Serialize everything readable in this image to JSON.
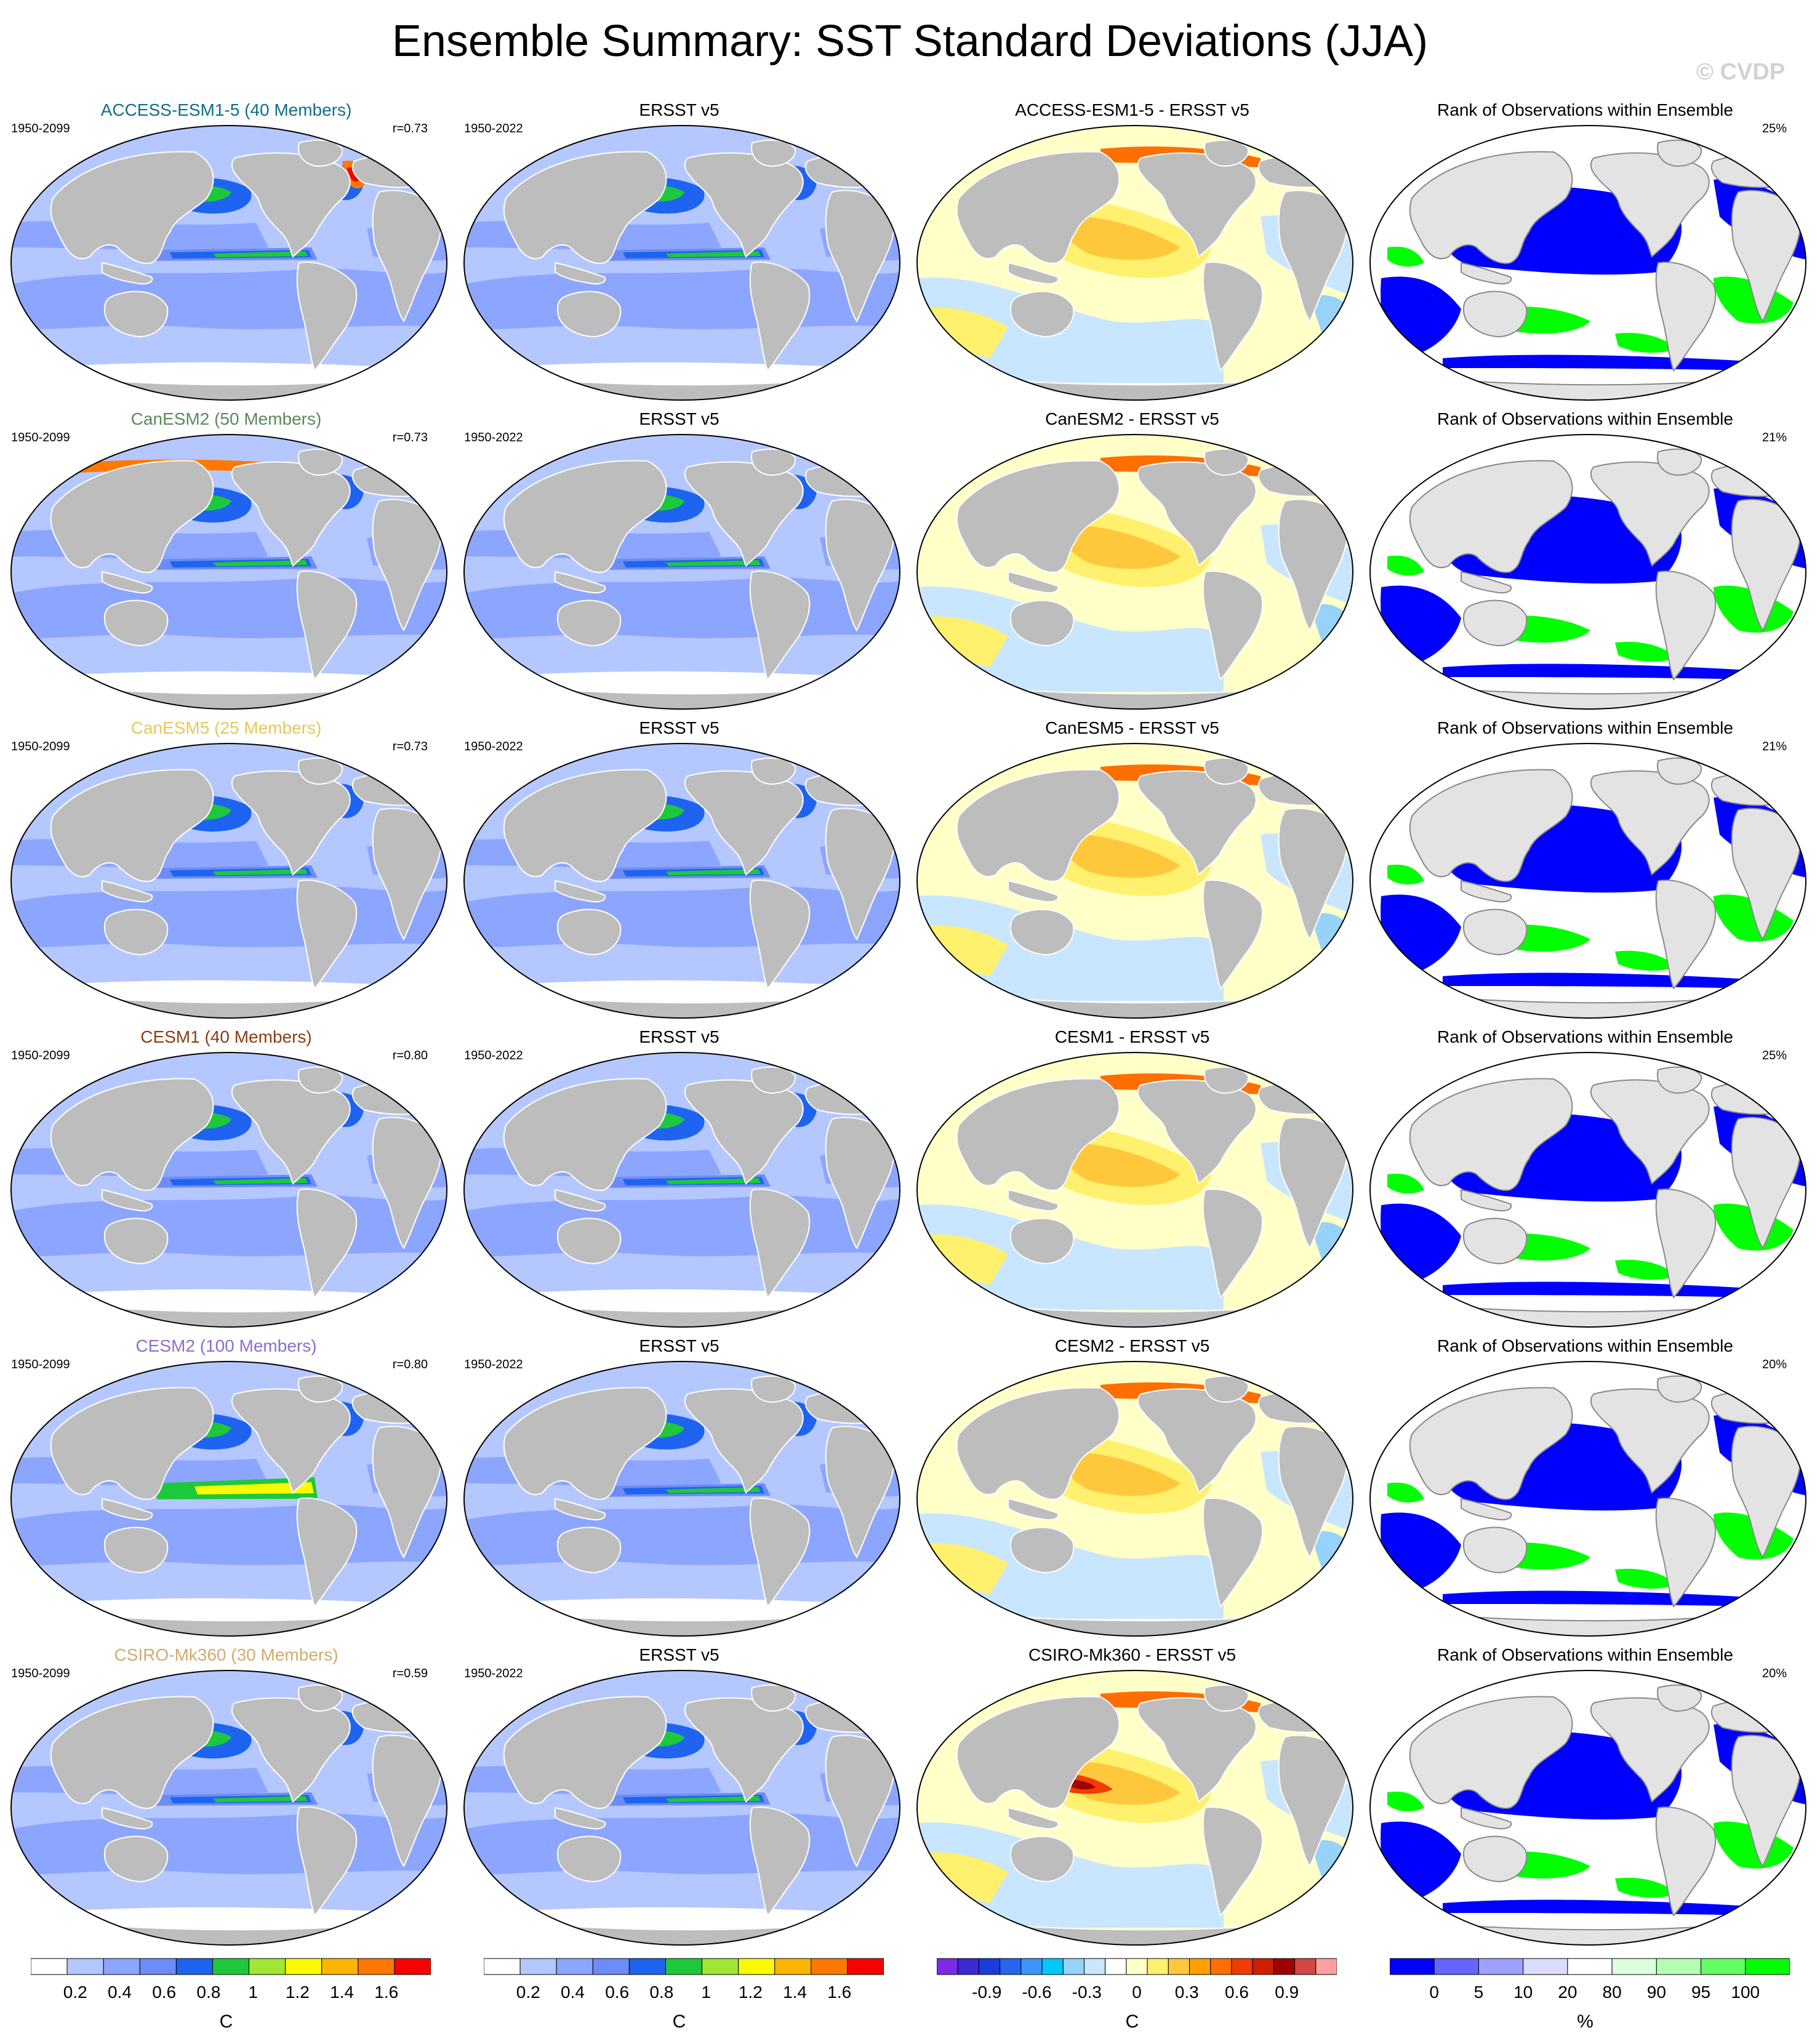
{
  "title": "Ensemble Summary: SST Standard Deviations (JJA)",
  "copyright": "© CVDP",
  "colors": {
    "land": "#bdbdbd",
    "land_light": "#e3e3e3",
    "sd": [
      "#ffffff",
      "#b4c8ff",
      "#8ca5ff",
      "#6e8cf5",
      "#1e64f0",
      "#1ec83c",
      "#a0e632",
      "#fafa00",
      "#ffb400",
      "#ff7800",
      "#fa0000"
    ],
    "diff": [
      "#7b2be6",
      "#3c2ad2",
      "#1a3cdc",
      "#2864f0",
      "#3c96fa",
      "#00c8ff",
      "#96d2fa",
      "#c8e6ff",
      "#ffffff",
      "#ffffc8",
      "#fff06e",
      "#ffc83c",
      "#ffa000",
      "#ff6e00",
      "#f03c00",
      "#d21e00",
      "#a00000",
      "#d24646",
      "#ffa0a0"
    ],
    "rank": [
      "#0000ff",
      "#6464ff",
      "#a0a0ff",
      "#dcdcff",
      "#ffffff",
      "#dcffdc",
      "#b4ffb4",
      "#64ff64",
      "#00ff00"
    ]
  },
  "rows": [
    {
      "model": "ACCESS-ESM1-5 (40 Members)",
      "model_color": "#0e6e8c",
      "model_period": "1950-2099",
      "r": "r=0.73",
      "obs_title": "ERSST v5",
      "obs_period": "1950-2022",
      "diff_title": "ACCESS-ESM1-5 - ERSST v5",
      "rank_title": "Rank of Observations within Ensemble",
      "rank_pct": "25%"
    },
    {
      "model": "CanESM2 (50 Members)",
      "model_color": "#5a8a5a",
      "model_period": "1950-2099",
      "r": "r=0.73",
      "obs_title": "ERSST v5",
      "obs_period": "1950-2022",
      "diff_title": "CanESM2 - ERSST v5",
      "rank_title": "Rank of Observations within Ensemble",
      "rank_pct": "21%"
    },
    {
      "model": "CanESM5 (25 Members)",
      "model_color": "#e6c85a",
      "model_period": "1950-2099",
      "r": "r=0.73",
      "obs_title": "ERSST v5",
      "obs_period": "1950-2022",
      "diff_title": "CanESM5 - ERSST v5",
      "rank_title": "Rank of Observations within Ensemble",
      "rank_pct": "21%"
    },
    {
      "model": "CESM1 (40 Members)",
      "model_color": "#8c3c14",
      "model_period": "1950-2099",
      "r": "r=0.80",
      "obs_title": "ERSST v5",
      "obs_period": "1950-2022",
      "diff_title": "CESM1 - ERSST v5",
      "rank_title": "Rank of Observations within Ensemble",
      "rank_pct": "25%"
    },
    {
      "model": "CESM2 (100 Members)",
      "model_color": "#8c6ed2",
      "model_period": "1950-2099",
      "r": "r=0.80",
      "obs_title": "ERSST v5",
      "obs_period": "1950-2022",
      "diff_title": "CESM2 - ERSST v5",
      "rank_title": "Rank of Observations within Ensemble",
      "rank_pct": "20%"
    },
    {
      "model": "CSIRO-Mk360 (30 Members)",
      "model_color": "#d2aa6e",
      "model_period": "1950-2099",
      "r": "r=0.59",
      "obs_title": "ERSST v5",
      "obs_period": "1950-2022",
      "diff_title": "CSIRO-Mk360 - ERSST v5",
      "rank_title": "Rank of Observations within Ensemble",
      "rank_pct": "20%"
    }
  ],
  "colorbars": [
    {
      "labels": [
        "0.2",
        "0.4",
        "0.6",
        "0.8",
        "1",
        "1.2",
        "1.4",
        "1.6"
      ],
      "unit": "C"
    },
    {
      "labels": [
        "0.2",
        "0.4",
        "0.6",
        "0.8",
        "1",
        "1.2",
        "1.4",
        "1.6"
      ],
      "unit": "C"
    },
    {
      "labels": [
        "-0.9",
        "-0.6",
        "-0.3",
        "0",
        "0.3",
        "0.6",
        "0.9"
      ],
      "unit": "C"
    },
    {
      "labels": [
        "0",
        "5",
        "10",
        "20",
        "80",
        "90",
        "95",
        "100"
      ],
      "unit": "%"
    }
  ]
}
